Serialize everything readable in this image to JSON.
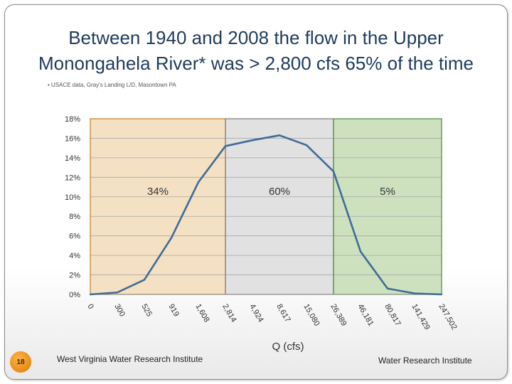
{
  "slide": {
    "title_line1": "Between 1940 and 2008 the flow in the Upper",
    "title_line2": "Monongahela River* was > 2,800 cfs 65% of the time",
    "source_note": "• USACE data, Gray's Landing L/D, Masontown PA",
    "page_number": "18",
    "footer_left": "West Virginia Water Research Institute",
    "footer_right": "Water Research Institute"
  },
  "chart_data": {
    "type": "line",
    "title": "",
    "xlabel": "Q  (cfs)",
    "ylabel": "",
    "categories": [
      "0",
      "300",
      "525",
      "919",
      "1,608",
      "2,814",
      "4,924",
      "8,617",
      "15,080",
      "26,389",
      "46,181",
      "80,817",
      "141,429",
      "247,502"
    ],
    "y_ticks": [
      "0%",
      "2%",
      "4%",
      "6%",
      "8%",
      "10%",
      "12%",
      "14%",
      "16%",
      "18%"
    ],
    "ylim": [
      0,
      18
    ],
    "grid": true,
    "series": [
      {
        "values": [
          0.0,
          0.2,
          1.5,
          5.8,
          11.5,
          15.2,
          15.8,
          16.3,
          15.3,
          12.6,
          4.4,
          0.6,
          0.1,
          0.0
        ]
      }
    ],
    "regions": [
      {
        "label": "34%",
        "from": "0",
        "to": "2,814",
        "color": "#f2dcb8"
      },
      {
        "label": "60%",
        "from": "2,814",
        "to": "26,389",
        "color": "#dcdcdc"
      },
      {
        "label": "5%",
        "from": "26,389",
        "to": "247,502",
        "color": "#c5dcb4"
      }
    ],
    "line_color": "#3f6b98",
    "region_border_colors": [
      "#c07d25",
      "#7a7a7a",
      "#4e8a3a"
    ]
  }
}
